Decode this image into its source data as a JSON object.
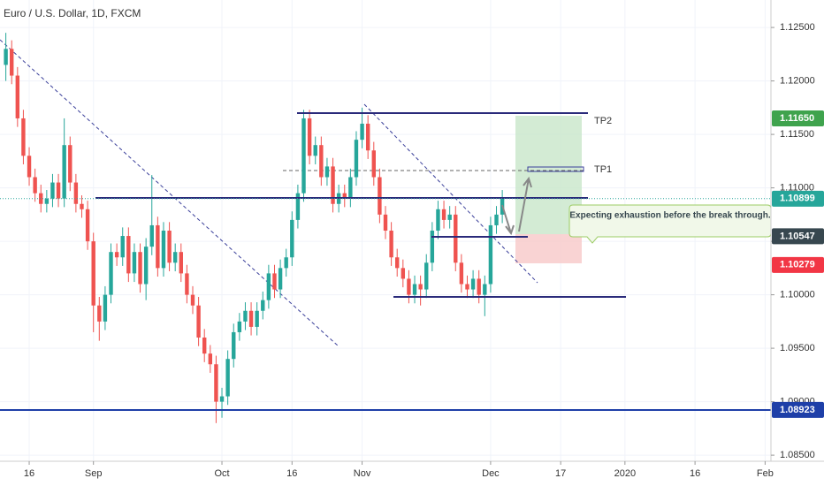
{
  "chart_data": {
    "type": "candlestick",
    "title": "Euro / U.S. Dollar, 1D, FXCM",
    "up_color": "#26a69a",
    "down_color": "#ef5350",
    "open": [
      1.1215,
      1.123,
      1.1205,
      1.1165,
      1.113,
      1.111,
      1.1095,
      1.1085,
      1.109,
      1.1105,
      1.109,
      1.114,
      1.1105,
      1.1085,
      1.108,
      1.105,
      1.099,
      1.0975,
      1.1,
      1.104,
      1.1035,
      1.1055,
      1.102,
      1.104,
      1.101,
      1.1045,
      1.1065,
      1.1025,
      1.106,
      1.103,
      1.104,
      1.102,
      1.1,
      1.099,
      1.096,
      1.0945,
      1.0935,
      1.09,
      1.0905,
      1.094,
      1.0965,
      1.0975,
      1.0985,
      1.097,
      1.0985,
      1.0995,
      1.102,
      1.1005,
      1.1025,
      1.1035,
      1.107,
      1.1095,
      1.1165,
      1.113,
      1.114,
      1.111,
      1.112,
      1.1085,
      1.1095,
      1.109,
      1.111,
      1.1145,
      1.116,
      1.1135,
      1.111,
      1.1075,
      1.106,
      1.1035,
      1.1025,
      1.1015,
      1.1,
      1.101,
      1.1005,
      1.103,
      1.106,
      1.108,
      1.107,
      1.1075,
      1.103,
      1.101,
      1.1005,
      1.1015,
      1.1,
      1.101,
      1.1065,
      1.1075
    ],
    "high": [
      1.1245,
      1.1238,
      1.1213,
      1.1173,
      1.1138,
      1.1118,
      1.1103,
      1.1098,
      1.1113,
      1.1113,
      1.1165,
      1.1148,
      1.1113,
      1.1093,
      1.1088,
      1.1058,
      1.0998,
      1.1008,
      1.1048,
      1.1048,
      1.1063,
      1.1063,
      1.1048,
      1.1048,
      1.1053,
      1.1112,
      1.1073,
      1.1068,
      1.1068,
      1.1048,
      1.1048,
      1.1028,
      1.1008,
      1.0998,
      1.0968,
      1.0953,
      1.0943,
      1.0913,
      1.0948,
      1.0973,
      1.0983,
      1.0993,
      1.0993,
      1.0993,
      1.1003,
      1.1028,
      1.1028,
      1.1033,
      1.1043,
      1.1078,
      1.1103,
      1.1173,
      1.1173,
      1.1148,
      1.1148,
      1.1128,
      1.1128,
      1.1103,
      1.1103,
      1.1118,
      1.1153,
      1.1175,
      1.1168,
      1.1143,
      1.1118,
      1.1083,
      1.1068,
      1.1043,
      1.1033,
      1.1023,
      1.1018,
      1.1018,
      1.1038,
      1.1068,
      1.1088,
      1.1088,
      1.1083,
      1.1083,
      1.1038,
      1.1018,
      1.1023,
      1.1023,
      1.1018,
      1.1073,
      1.1083,
      1.1098
    ],
    "low": [
      1.12,
      1.1197,
      1.1157,
      1.1122,
      1.1102,
      1.1087,
      1.1077,
      1.1077,
      1.1082,
      1.1082,
      1.1082,
      1.1097,
      1.1077,
      1.1072,
      1.1042,
      1.0965,
      1.0957,
      1.0967,
      1.0992,
      1.1027,
      1.1027,
      1.1012,
      1.1012,
      1.1002,
      1.0995,
      1.1037,
      1.1017,
      1.1017,
      1.1022,
      1.1022,
      1.1012,
      1.0992,
      1.0982,
      1.0952,
      1.0937,
      1.0927,
      1.088,
      1.0885,
      1.0897,
      1.0932,
      1.0957,
      1.0967,
      1.0962,
      1.0962,
      1.0977,
      1.0987,
      1.0997,
      1.0997,
      1.1017,
      1.1027,
      1.1062,
      1.1087,
      1.1122,
      1.1122,
      1.1102,
      1.1102,
      1.1077,
      1.1077,
      1.1082,
      1.1082,
      1.1102,
      1.1137,
      1.1127,
      1.1102,
      1.1067,
      1.1052,
      1.1027,
      1.1017,
      1.1007,
      1.0992,
      1.0992,
      1.099,
      1.0997,
      1.1022,
      1.1052,
      1.1062,
      1.1062,
      1.1022,
      1.1002,
      1.0997,
      1.0997,
      1.0992,
      1.098,
      1.1002,
      1.1057,
      1.1067
    ],
    "close": [
      1.123,
      1.1205,
      1.1165,
      1.113,
      1.111,
      1.1095,
      1.1085,
      1.109,
      1.1105,
      1.109,
      1.114,
      1.1105,
      1.1085,
      1.108,
      1.105,
      1.099,
      1.0975,
      1.1,
      1.104,
      1.1035,
      1.1055,
      1.102,
      1.104,
      1.101,
      1.1045,
      1.1065,
      1.1025,
      1.106,
      1.103,
      1.104,
      1.102,
      1.1,
      1.099,
      1.096,
      1.0945,
      1.0935,
      1.09,
      1.0905,
      1.094,
      1.0965,
      1.0975,
      1.0985,
      1.097,
      1.0985,
      1.0995,
      1.102,
      1.1005,
      1.1025,
      1.1035,
      1.107,
      1.1095,
      1.1165,
      1.113,
      1.114,
      1.111,
      1.112,
      1.1085,
      1.1095,
      1.109,
      1.111,
      1.1145,
      1.116,
      1.1135,
      1.111,
      1.1075,
      1.106,
      1.1035,
      1.1025,
      1.1015,
      1.1,
      1.101,
      1.1005,
      1.103,
      1.106,
      1.108,
      1.107,
      1.1075,
      1.103,
      1.101,
      1.1005,
      1.1015,
      1.1,
      1.101,
      1.1065,
      1.1075,
      1.109
    ],
    "xlim": [
      -1,
      131
    ],
    "xticks": [
      {
        "value": 4,
        "label": "16"
      },
      {
        "value": 15,
        "label": "Sep"
      },
      {
        "value": 37,
        "label": "Oct"
      },
      {
        "value": 49,
        "label": "16"
      },
      {
        "value": 61,
        "label": "Nov"
      },
      {
        "value": 83,
        "label": "Dec"
      },
      {
        "value": 95,
        "label": "17"
      },
      {
        "value": 106,
        "label": "2020"
      },
      {
        "value": 118,
        "label": "16"
      },
      {
        "value": 130,
        "label": "Feb"
      }
    ],
    "ylim": [
      1.08443,
      1.12757
    ],
    "yticks": [
      {
        "value": 1.085,
        "label": "1.08500"
      },
      {
        "value": 1.09,
        "label": "1.09000"
      },
      {
        "value": 1.095,
        "label": "1.09500"
      },
      {
        "value": 1.1,
        "label": "1.10000"
      },
      {
        "value": 1.105,
        "label": "1.10500"
      },
      {
        "value": 1.11,
        "label": "1.11000"
      },
      {
        "value": 1.115,
        "label": "1.11500"
      },
      {
        "value": 1.12,
        "label": "1.12000"
      },
      {
        "value": 1.125,
        "label": "1.12500"
      }
    ],
    "price_labels": [
      {
        "value": 1.1165,
        "label": "1.11650",
        "color": "#3fa34d"
      },
      {
        "value": 1.10899,
        "label": "1.10899",
        "color": "#26a69a"
      },
      {
        "value": 1.10547,
        "label": "1.10547",
        "color": "#37474f"
      },
      {
        "value": 1.10279,
        "label": "1.10279",
        "color": "#f23645"
      },
      {
        "value": 1.08923,
        "label": "1.08923",
        "color": "#1e3fa8"
      }
    ],
    "annotations": {
      "tp2": "TP2",
      "tp1": "TP1",
      "note": "Expecting exhaustion before the break through."
    }
  }
}
